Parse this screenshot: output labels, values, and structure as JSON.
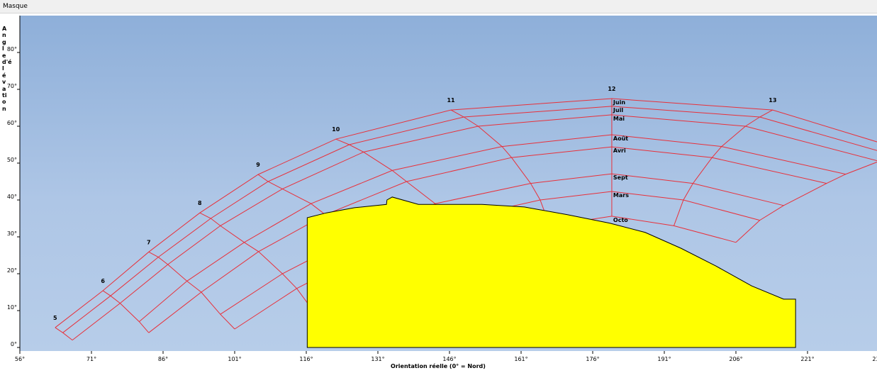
{
  "window_title": "Masque",
  "chart_data": {
    "type": "sunpath",
    "xlabel": "Orientation réelle (0° = Nord)",
    "ylabel": "Angle d'élévation",
    "xlim": [
      56,
      236
    ],
    "ylim": [
      0,
      90
    ],
    "xticks": [
      {
        "value": 56,
        "label": "56°"
      },
      {
        "value": 71,
        "label": "71°"
      },
      {
        "value": 86,
        "label": "86°"
      },
      {
        "value": 101,
        "label": "101°"
      },
      {
        "value": 116,
        "label": "116°"
      },
      {
        "value": 131,
        "label": "131°"
      },
      {
        "value": 146,
        "label": "146°"
      },
      {
        "value": 161,
        "label": "161°"
      },
      {
        "value": 176,
        "label": "176°"
      },
      {
        "value": 191,
        "label": "191°"
      },
      {
        "value": 206,
        "label": "206°"
      },
      {
        "value": 221,
        "label": "221°"
      },
      {
        "value": 236,
        "label": "236°"
      }
    ],
    "yticks": [
      {
        "value": 0,
        "label": "0°"
      },
      {
        "value": 10,
        "label": "10°"
      },
      {
        "value": 20,
        "label": "20°"
      },
      {
        "value": 30,
        "label": "30°"
      },
      {
        "value": 40,
        "label": "40°"
      },
      {
        "value": 50,
        "label": "50°"
      },
      {
        "value": 60,
        "label": "60°"
      },
      {
        "value": 70,
        "label": "70°"
      },
      {
        "value": 80,
        "label": "80°"
      }
    ],
    "categories": [
      "5",
      "6",
      "7",
      "8",
      "9",
      "10",
      "11",
      "12",
      "13",
      null
    ],
    "line_color": "#e8303a",
    "series": [
      {
        "name": "Juin",
        "x": [
          63.4,
          73.4,
          83.0,
          93.7,
          105.9,
          122.2,
          146.3,
          180,
          213.7,
          240
        ],
        "values": [
          5.4,
          15.4,
          25.9,
          36.5,
          46.9,
          56.5,
          64.4,
          67.5,
          64.4,
          54
        ]
      },
      {
        "name": "Juil",
        "x": [
          65,
          75,
          85,
          96,
          108,
          125,
          149,
          180,
          211,
          238
        ],
        "values": [
          4,
          14,
          24.5,
          35,
          45,
          55,
          62.5,
          65.4,
          62.5,
          52.5
        ]
      },
      {
        "name": "Mai",
        "x": [
          67,
          77,
          87,
          98,
          111,
          128,
          152,
          180,
          208,
          236
        ],
        "values": [
          2,
          12,
          22.5,
          33,
          43,
          53,
          60,
          63.1,
          60,
          50.5
        ]
      },
      {
        "name": "Août",
        "x": [
          null,
          81,
          91,
          103,
          117,
          134,
          157,
          180,
          203,
          229
        ],
        "values": [
          null,
          7,
          18,
          28.5,
          39,
          48,
          54.5,
          57.7,
          54.5,
          47
        ]
      },
      {
        "name": "Avri",
        "x": [
          null,
          83,
          94,
          106,
          120,
          137,
          159,
          180,
          201,
          225
        ],
        "values": [
          null,
          4,
          15,
          26,
          36,
          45,
          51.5,
          54.4,
          51.5,
          44.5
        ]
      },
      {
        "name": "Sept",
        "x": [
          null,
          null,
          98,
          111,
          126,
          143,
          163,
          180,
          197,
          216
        ],
        "values": [
          null,
          null,
          9,
          20,
          30,
          39,
          44.5,
          47.1,
          44.5,
          38.5
        ]
      },
      {
        "name": "Mars",
        "x": [
          null,
          null,
          101,
          114,
          129,
          146,
          165,
          180,
          195,
          211
        ],
        "values": [
          null,
          null,
          5,
          16,
          26,
          34.5,
          40,
          42.3,
          40,
          34.5
        ]
      },
      {
        "name": "Octo",
        "x": [
          null,
          null,
          null,
          118,
          133,
          150,
          167,
          180,
          193,
          206
        ],
        "values": [
          null,
          null,
          null,
          9,
          19,
          27.5,
          33,
          35.6,
          33,
          28.5
        ]
      }
    ],
    "mask": {
      "color": "#ffff00",
      "x": [
        116.2,
        116.2,
        120.2,
        126.1,
        132.8,
        132.9,
        134,
        139.5,
        152.8,
        161.7,
        170.7,
        179.6,
        187,
        194.5,
        201.8,
        209.3,
        216,
        218.5,
        218.5
      ],
      "values": [
        0,
        35.2,
        36.5,
        37.9,
        38.8,
        40,
        40.8,
        38.8,
        38.8,
        38.1,
        36,
        33.7,
        31.2,
        26.9,
        22.1,
        16.7,
        13.1,
        13.1,
        0
      ]
    }
  }
}
